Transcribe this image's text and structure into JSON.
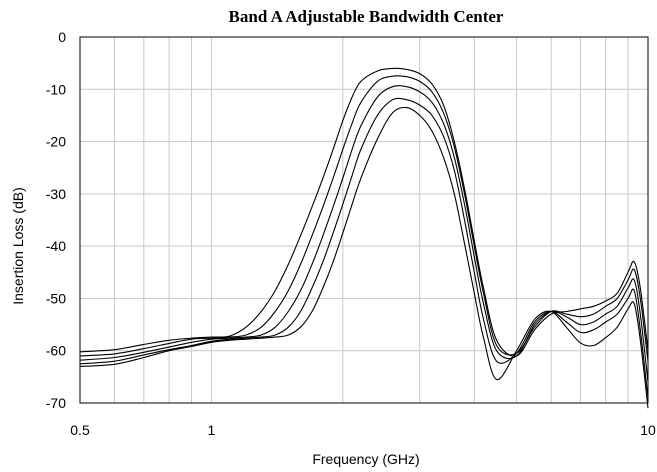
{
  "chart_data": {
    "type": "line",
    "title": "Band A Adjustable Bandwidth Center",
    "xlabel": "Frequency (GHz)",
    "ylabel": "Insertion Loss (dB)",
    "xscale": "log",
    "xlim": [
      0.5,
      10
    ],
    "ylim": [
      -70,
      0
    ],
    "xticks": [
      0.5,
      1,
      10
    ],
    "xtick_labels": [
      "0.5",
      "1",
      "10"
    ],
    "yticks": [
      0,
      -10,
      -20,
      -30,
      -40,
      -50,
      -60,
      -70
    ],
    "ytick_labels": [
      "0",
      "-10",
      "-20",
      "-30",
      "-40",
      "-50",
      "-60",
      "-70"
    ],
    "grid": true,
    "legend": "none",
    "series": [
      {
        "x": [
          0.5,
          0.6,
          0.7,
          0.8,
          0.9,
          1.0,
          1.1,
          1.2,
          1.3,
          1.4,
          1.5,
          1.6,
          1.7,
          1.8,
          1.9,
          2.0,
          2.1,
          2.2,
          2.4,
          2.6,
          2.8,
          3.0,
          3.2,
          3.4,
          3.6,
          3.8,
          4.0,
          4.2,
          4.5,
          5.0,
          5.5,
          6.0,
          6.5,
          7.0,
          7.5,
          8.0,
          8.5,
          9.0,
          9.3,
          9.6,
          10.0
        ],
        "y": [
          -60.2,
          -59.8,
          -58.8,
          -58.0,
          -57.6,
          -57.4,
          -57.2,
          -55.5,
          -52.5,
          -48.5,
          -43.5,
          -38.0,
          -32.5,
          -27.0,
          -21.5,
          -16.0,
          -11.5,
          -8.5,
          -6.5,
          -6.0,
          -6.2,
          -7.0,
          -9.0,
          -13.0,
          -20.0,
          -29.0,
          -39.0,
          -48.0,
          -58.0,
          -61.0,
          -56.0,
          -53.0,
          -52.5,
          -52.0,
          -51.5,
          -50.5,
          -49.0,
          -45.0,
          -43.0,
          -48.0,
          -60.0
        ]
      },
      {
        "x": [
          0.5,
          0.6,
          0.7,
          0.8,
          0.9,
          1.0,
          1.1,
          1.2,
          1.3,
          1.4,
          1.5,
          1.6,
          1.7,
          1.8,
          1.9,
          2.0,
          2.1,
          2.2,
          2.4,
          2.6,
          2.8,
          3.0,
          3.2,
          3.4,
          3.6,
          3.8,
          4.0,
          4.2,
          4.5,
          5.0,
          5.5,
          6.0,
          6.5,
          7.0,
          7.5,
          8.0,
          8.5,
          9.0,
          9.3,
          9.6,
          10.0
        ],
        "y": [
          -61.0,
          -60.6,
          -59.6,
          -58.6,
          -57.8,
          -57.6,
          -57.4,
          -57.0,
          -55.5,
          -52.5,
          -48.5,
          -43.5,
          -38.0,
          -32.5,
          -27.0,
          -21.5,
          -16.5,
          -12.5,
          -8.5,
          -7.5,
          -7.6,
          -8.5,
          -10.5,
          -14.5,
          -21.0,
          -30.0,
          -40.0,
          -49.0,
          -59.0,
          -60.5,
          -55.5,
          -52.5,
          -53.0,
          -53.5,
          -53.0,
          -51.5,
          -50.0,
          -46.5,
          -44.5,
          -50.0,
          -62.0
        ]
      },
      {
        "x": [
          0.5,
          0.6,
          0.7,
          0.8,
          0.9,
          1.0,
          1.1,
          1.2,
          1.3,
          1.4,
          1.5,
          1.6,
          1.7,
          1.8,
          1.9,
          2.0,
          2.1,
          2.2,
          2.4,
          2.6,
          2.8,
          3.0,
          3.2,
          3.4,
          3.6,
          3.8,
          4.0,
          4.2,
          4.5,
          5.0,
          5.5,
          6.0,
          6.5,
          7.0,
          7.5,
          8.0,
          8.5,
          9.0,
          9.3,
          9.6,
          10.0
        ],
        "y": [
          -61.8,
          -61.3,
          -60.3,
          -59.3,
          -58.4,
          -57.8,
          -57.6,
          -57.4,
          -57.0,
          -55.5,
          -52.5,
          -48.5,
          -43.5,
          -38.0,
          -32.5,
          -27.0,
          -21.5,
          -17.0,
          -11.5,
          -9.5,
          -9.5,
          -10.5,
          -12.5,
          -16.5,
          -23.0,
          -32.0,
          -42.0,
          -51.0,
          -60.0,
          -61.0,
          -55.0,
          -52.5,
          -53.5,
          -55.0,
          -54.5,
          -53.0,
          -51.5,
          -48.0,
          -46.5,
          -53.0,
          -66.0
        ]
      },
      {
        "x": [
          0.5,
          0.6,
          0.7,
          0.8,
          0.9,
          1.0,
          1.1,
          1.2,
          1.3,
          1.4,
          1.5,
          1.6,
          1.7,
          1.8,
          1.9,
          2.0,
          2.1,
          2.2,
          2.4,
          2.6,
          2.8,
          3.0,
          3.2,
          3.4,
          3.6,
          3.8,
          4.0,
          4.2,
          4.5,
          5.0,
          5.5,
          6.0,
          6.5,
          7.0,
          7.5,
          8.0,
          8.5,
          9.0,
          9.3,
          9.6,
          10.0
        ],
        "y": [
          -62.5,
          -62.0,
          -60.8,
          -59.8,
          -59.0,
          -58.2,
          -57.8,
          -57.6,
          -57.4,
          -57.0,
          -55.5,
          -52.5,
          -48.0,
          -43.0,
          -37.5,
          -32.0,
          -26.5,
          -21.5,
          -15.0,
          -12.0,
          -12.0,
          -13.0,
          -15.0,
          -19.0,
          -25.5,
          -35.0,
          -45.0,
          -54.0,
          -62.0,
          -60.5,
          -54.5,
          -52.5,
          -54.5,
          -56.5,
          -56.0,
          -54.5,
          -53.0,
          -50.0,
          -48.5,
          -56.0,
          -69.0
        ]
      },
      {
        "x": [
          0.5,
          0.6,
          0.7,
          0.8,
          0.9,
          1.0,
          1.1,
          1.2,
          1.3,
          1.4,
          1.5,
          1.6,
          1.7,
          1.8,
          1.9,
          2.0,
          2.1,
          2.2,
          2.4,
          2.6,
          2.8,
          3.0,
          3.2,
          3.4,
          3.6,
          3.8,
          4.0,
          4.2,
          4.5,
          5.0,
          5.5,
          6.0,
          6.5,
          7.0,
          7.5,
          8.0,
          8.5,
          9.0,
          9.3,
          9.6,
          10.0
        ],
        "y": [
          -63.0,
          -62.6,
          -61.3,
          -60.0,
          -59.2,
          -58.4,
          -58.0,
          -57.8,
          -57.6,
          -57.4,
          -57.0,
          -55.5,
          -52.5,
          -48.0,
          -43.0,
          -37.5,
          -32.0,
          -27.0,
          -19.5,
          -14.5,
          -13.5,
          -15.0,
          -18.0,
          -23.0,
          -30.0,
          -39.5,
          -49.0,
          -57.5,
          -65.5,
          -60.0,
          -54.0,
          -52.5,
          -55.5,
          -58.5,
          -59.0,
          -57.5,
          -55.5,
          -52.0,
          -51.0,
          -58.0,
          -71.0
        ]
      }
    ]
  }
}
